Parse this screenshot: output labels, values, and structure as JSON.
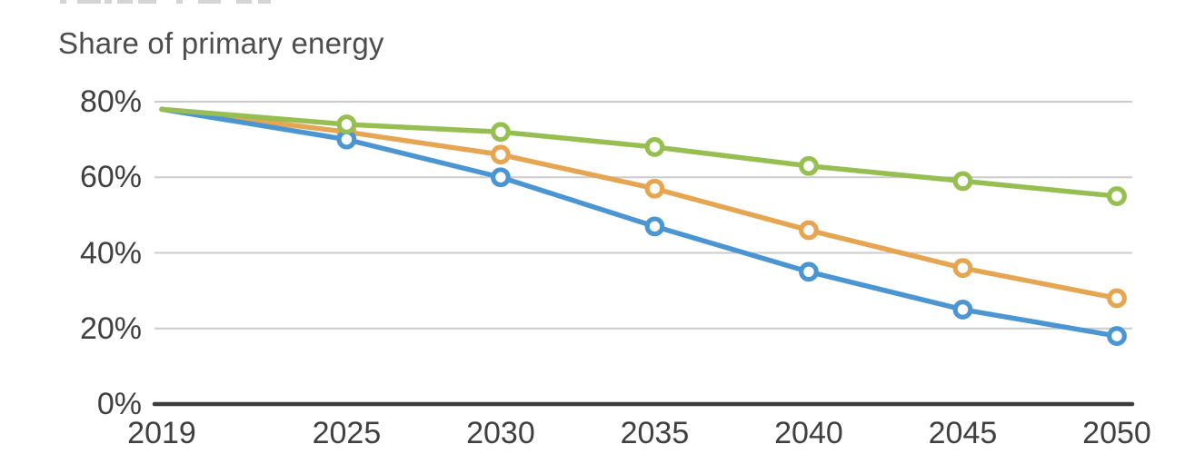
{
  "top_clipped_marks": [
    [
      66,
      7
    ],
    [
      85,
      26
    ],
    [
      115,
      8
    ],
    [
      129,
      17
    ],
    [
      152,
      20
    ],
    [
      194,
      7
    ],
    [
      218,
      25
    ],
    [
      260,
      17
    ],
    [
      284,
      14
    ]
  ],
  "chart_data": {
    "type": "line",
    "title": "Share of primary energy",
    "xlabel": "",
    "ylabel": "",
    "x": [
      2019,
      2025,
      2030,
      2035,
      2040,
      2045,
      2050
    ],
    "x_tick_labels": [
      "2019",
      "2025",
      "2030",
      "2035",
      "2040",
      "2045",
      "2050"
    ],
    "y_ticks": [
      {
        "value": 0,
        "label": "0%"
      },
      {
        "value": 20,
        "label": "20%"
      },
      {
        "value": 40,
        "label": "40%"
      },
      {
        "value": 60,
        "label": "60%"
      },
      {
        "value": 80,
        "label": "80%"
      }
    ],
    "xlim": [
      2019,
      2050
    ],
    "ylim": [
      0,
      80
    ],
    "grid": "horizontal-light",
    "legend": "none",
    "marker": "open-circle",
    "marker_at_first_point": false,
    "series": [
      {
        "name": "green-series",
        "color": "#96BE50",
        "z": 2,
        "values": [
          78,
          74,
          72,
          68,
          63,
          59,
          55
        ]
      },
      {
        "name": "orange-series",
        "color": "#E6A550",
        "z": 0,
        "values": [
          78,
          72,
          66,
          57,
          46,
          36,
          28
        ]
      },
      {
        "name": "blue-series",
        "color": "#4B96D2",
        "z": 1,
        "values": [
          78,
          70,
          60,
          47,
          35,
          25,
          18
        ]
      }
    ],
    "colors": {
      "gridline": "#cccccc",
      "axis_line": "#3c3c3c",
      "tick_text": "#404040",
      "title_text": "#4d4d4d"
    }
  }
}
